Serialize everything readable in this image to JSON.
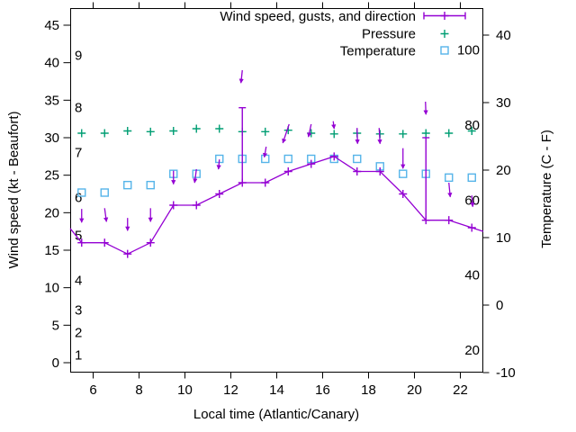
{
  "chart_data": {
    "type": "line",
    "x_axis": {
      "label": "Local time (Atlantic/Canary)",
      "range": [
        5,
        23
      ],
      "ticks": [
        6,
        8,
        10,
        12,
        14,
        16,
        18,
        20,
        22
      ]
    },
    "y_left_axis": {
      "label": "Wind speed (kt - Beaufort)",
      "ticks": [
        0,
        5,
        10,
        15,
        20,
        25,
        30,
        35,
        40,
        45
      ],
      "beaufort_scale": [
        {
          "label": "1",
          "kt": 1
        },
        {
          "label": "2",
          "kt": 4
        },
        {
          "label": "3",
          "kt": 7
        },
        {
          "label": "4",
          "kt": 11
        },
        {
          "label": "5",
          "kt": 17
        },
        {
          "label": "6",
          "kt": 22
        },
        {
          "label": "7",
          "kt": 28
        },
        {
          "label": "8",
          "kt": 34
        },
        {
          "label": "9",
          "kt": 41
        }
      ]
    },
    "y_right_axis": {
      "label": "Temperature (C - F)",
      "ticks_celsius": [
        -10,
        0,
        10,
        20,
        30,
        40
      ],
      "fahrenheit_scale": [
        {
          "label": "20",
          "f": 20
        },
        {
          "label": "40",
          "f": 40
        },
        {
          "label": "60",
          "f": 60
        },
        {
          "label": "80",
          "f": 80
        },
        {
          "label": "100",
          "f": 100
        }
      ]
    },
    "legend": [
      {
        "label": "Wind speed, gusts, and direction",
        "marker": "errorbar-line",
        "color": "#9400d3"
      },
      {
        "label": "Pressure",
        "marker": "plus",
        "color": "#009e73"
      },
      {
        "label": "Temperature",
        "marker": "open-square",
        "color": "#56b4e9"
      }
    ],
    "x": [
      5.5,
      6.5,
      7.5,
      8.5,
      9.5,
      10.5,
      11.5,
      12.5,
      13.5,
      14.5,
      15.5,
      16.5,
      17.5,
      18.5,
      19.5,
      20.5,
      21.5,
      22.5
    ],
    "wind_speed_kt": [
      16,
      16,
      14.5,
      16,
      21,
      21,
      22.5,
      24,
      24,
      25.5,
      26.5,
      27.5,
      25.5,
      25.5,
      22.5,
      19,
      19,
      18
    ],
    "wind_line_edges": {
      "left": {
        "t": 5.0,
        "kt": 17.9
      },
      "right": {
        "t": 23.0,
        "kt": 17.5
      }
    },
    "wind_gusts": [
      {
        "t": 12.5,
        "from_kt": 24,
        "to_kt": 34
      },
      {
        "t": 20.5,
        "from_kt": 19,
        "to_kt": 30
      }
    ],
    "wind_direction_arrows": [
      {
        "t": 5.5,
        "tail_kt": 20.5,
        "head_kt": 18.7,
        "dx_tail": 0,
        "dx_head": 0
      },
      {
        "t": 6.5,
        "tail_kt": 20.6,
        "head_kt": 18.8,
        "dx_tail": 0,
        "dx_head": 2
      },
      {
        "t": 7.5,
        "tail_kt": 19.3,
        "head_kt": 17.6,
        "dx_tail": 0,
        "dx_head": 0
      },
      {
        "t": 8.5,
        "tail_kt": 20.6,
        "head_kt": 18.8,
        "dx_tail": 0,
        "dx_head": 0
      },
      {
        "t": 9.5,
        "tail_kt": 25.6,
        "head_kt": 23.8,
        "dx_tail": 0,
        "dx_head": 0
      },
      {
        "t": 10.5,
        "tail_kt": 25.8,
        "head_kt": 24.0,
        "dx_tail": 0,
        "dx_head": -2
      },
      {
        "t": 11.5,
        "tail_kt": 27.1,
        "head_kt": 25.8,
        "dx_tail": 0,
        "dx_head": -1
      },
      {
        "t": 12.5,
        "tail_kt": 39.0,
        "head_kt": 37.3,
        "dx_tail": 0,
        "dx_head": -1.5
      },
      {
        "t": 13.5,
        "tail_kt": 28.8,
        "head_kt": 27.4,
        "dx_tail": 1,
        "dx_head": -1
      },
      {
        "t": 14.5,
        "tail_kt": 31.8,
        "head_kt": 29.3,
        "dx_tail": 1,
        "dx_head": -6
      },
      {
        "t": 15.5,
        "tail_kt": 31.8,
        "head_kt": 30.1,
        "dx_tail": 0,
        "dx_head": -3
      },
      {
        "t": 16.5,
        "tail_kt": 32.2,
        "head_kt": 31.2,
        "dx_tail": -1,
        "dx_head": 0
      },
      {
        "t": 17.5,
        "tail_kt": 31.3,
        "head_kt": 29.2,
        "dx_tail": 0,
        "dx_head": 0.5
      },
      {
        "t": 18.5,
        "tail_kt": 31.3,
        "head_kt": 29.2,
        "dx_tail": -1,
        "dx_head": 0
      },
      {
        "t": 19.5,
        "tail_kt": 28.6,
        "head_kt": 25.9,
        "dx_tail": 0,
        "dx_head": 0
      },
      {
        "t": 20.5,
        "tail_kt": 34.8,
        "head_kt": 33.1,
        "dx_tail": -0.5,
        "dx_head": 0
      },
      {
        "t": 21.5,
        "tail_kt": 24.0,
        "head_kt": 22.1,
        "dx_tail": 0,
        "dx_head": 1.5
      },
      {
        "t": 22.5,
        "tail_kt": 22.3,
        "head_kt": 20.8,
        "dx_tail": 0,
        "dx_head": 1
      }
    ],
    "pressure_plotted_kt_scale": [
      30.6,
      30.6,
      30.9,
      30.8,
      30.9,
      31.2,
      31.2,
      30.8,
      30.8,
      31.0,
      30.6,
      30.5,
      30.6,
      30.5,
      30.5,
      30.6,
      30.6,
      30.9
    ],
    "temperature_f": [
      62,
      62,
      64,
      64,
      67,
      67,
      71,
      71,
      71,
      71,
      71,
      71,
      71,
      69,
      67,
      67,
      66,
      66
    ],
    "colors": {
      "wind": "#9400d3",
      "pressure": "#009e73",
      "temperature": "#56b4e9",
      "axis": "#000000",
      "background": "#ffffff"
    }
  }
}
